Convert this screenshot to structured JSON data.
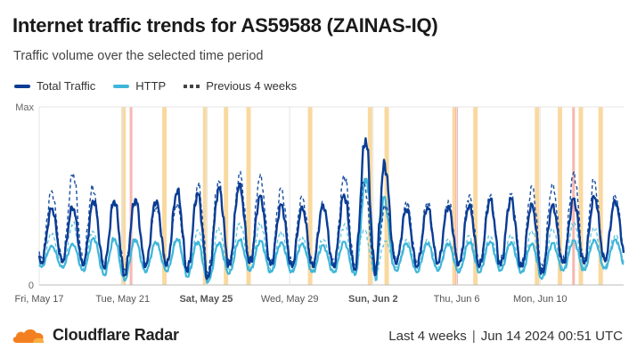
{
  "header": {
    "title": "Internet traffic trends for AS59588 (ZAINAS-IQ)",
    "subtitle": "Traffic volume over the selected time period"
  },
  "legend": {
    "total": "Total Traffic",
    "http": "HTTP",
    "previous": "Previous 4 weeks"
  },
  "colors": {
    "total": "#0a3c94",
    "http": "#3fb6d9",
    "previous_total": "#1b4fa0",
    "previous_http": "#5cc5e0",
    "highlight": "#f9d9a0",
    "highlight_red": "#f7b7b0",
    "grid": "#e4e4e4",
    "brand_orange": "#f38020"
  },
  "footer": {
    "brand": "Cloudflare Radar",
    "range": "Last 4 weeks",
    "separator": "|",
    "timestamp": "Jun 14 2024 00:51 UTC"
  },
  "chart_data": {
    "type": "line",
    "title": "Internet traffic trends for AS59588 (ZAINAS-IQ)",
    "subtitle": "Traffic volume over the selected time period",
    "y_tick_labels": [
      "Max",
      "0"
    ],
    "ylim": [
      0,
      1
    ],
    "x_tick_labels": [
      "Fri, May 17",
      "Tue, May 21",
      "Sat, May 25",
      "Wed, May 29",
      "Sun, Jun 2",
      "Thu, Jun 6",
      "Mon, Jun 10"
    ],
    "x_ticks_bold": [
      false,
      false,
      true,
      false,
      true,
      false,
      false
    ],
    "x_tick_days": [
      0,
      4,
      8,
      12,
      16,
      20,
      24
    ],
    "x_range_days": [
      0,
      28
    ],
    "grid": true,
    "legend_position": "top-left",
    "highlight_days": [
      4.04,
      6.0,
      7.95,
      8.95,
      10.03,
      12.98,
      15.85,
      16.65,
      19.9,
      20.9,
      23.85,
      24.95,
      25.95,
      26.9
    ],
    "highlight_days_red": [
      4.4,
      20.0,
      25.6
    ],
    "series": [
      {
        "name": "Total Traffic",
        "style": "solid",
        "daily": {
          "days": [
            0,
            1,
            2,
            3,
            4,
            5,
            6,
            7,
            8,
            9,
            10,
            11,
            12,
            13,
            14,
            15,
            16,
            17,
            18,
            19,
            20,
            21,
            22,
            23,
            24,
            25,
            26,
            27,
            28
          ],
          "peak": [
            0.42,
            0.44,
            0.44,
            0.5,
            0.46,
            0.5,
            0.46,
            0.58,
            0.47,
            0.6,
            0.55,
            0.47,
            0.44,
            0.44,
            0.46,
            0.54,
            1.0,
            0.44,
            0.42,
            0.45,
            0.44,
            0.46,
            0.5,
            0.48,
            0.44,
            0.46,
            0.5,
            0.5,
            0.46
          ],
          "trough": [
            0.12,
            0.13,
            0.11,
            0.1,
            0.05,
            0.1,
            0.11,
            0.08,
            0.03,
            0.1,
            0.12,
            0.11,
            0.1,
            0.1,
            0.1,
            0.09,
            0.05,
            0.12,
            0.1,
            0.12,
            0.11,
            0.1,
            0.11,
            0.1,
            0.06,
            0.12,
            0.12,
            0.13,
            0.15
          ]
        }
      },
      {
        "name": "HTTP",
        "style": "solid",
        "daily": {
          "days": [
            0,
            1,
            2,
            3,
            4,
            5,
            6,
            7,
            8,
            9,
            10,
            11,
            12,
            13,
            14,
            15,
            16,
            17,
            18,
            19,
            20,
            21,
            22,
            23,
            24,
            25,
            26,
            27,
            28
          ],
          "peak": [
            0.22,
            0.22,
            0.24,
            0.28,
            0.25,
            0.26,
            0.23,
            0.28,
            0.22,
            0.25,
            0.26,
            0.24,
            0.24,
            0.23,
            0.22,
            0.26,
            0.82,
            0.24,
            0.23,
            0.24,
            0.23,
            0.25,
            0.24,
            0.24,
            0.23,
            0.24,
            0.26,
            0.25,
            0.26
          ],
          "trough": [
            0.1,
            0.1,
            0.08,
            0.06,
            0.02,
            0.07,
            0.08,
            0.05,
            0.01,
            0.06,
            0.08,
            0.07,
            0.07,
            0.07,
            0.07,
            0.06,
            0.02,
            0.08,
            0.07,
            0.08,
            0.07,
            0.07,
            0.08,
            0.07,
            0.03,
            0.08,
            0.08,
            0.09,
            0.1
          ]
        }
      },
      {
        "name": "Previous 4 weeks",
        "style": "dashed",
        "daily": {
          "days": [
            0,
            1,
            2,
            3,
            4,
            5,
            6,
            7,
            8,
            9,
            10,
            11,
            12,
            13,
            14,
            15,
            16,
            17,
            18,
            19,
            20,
            21,
            22,
            23,
            24,
            25,
            26,
            27,
            28
          ],
          "peak": [
            0.54,
            0.52,
            0.7,
            0.44,
            0.48,
            0.46,
            0.42,
            0.48,
            0.62,
            0.56,
            0.68,
            0.58,
            0.52,
            0.48,
            0.46,
            0.72,
            0.46,
            0.44,
            0.48,
            0.46,
            0.48,
            0.52,
            0.5,
            0.52,
            0.58,
            0.56,
            0.68,
            0.52,
            0.5
          ],
          "trough": [
            0.14,
            0.14,
            0.12,
            0.12,
            0.08,
            0.12,
            0.13,
            0.1,
            0.06,
            0.12,
            0.13,
            0.12,
            0.12,
            0.12,
            0.12,
            0.11,
            0.08,
            0.14,
            0.12,
            0.13,
            0.12,
            0.12,
            0.13,
            0.12,
            0.08,
            0.13,
            0.13,
            0.14,
            0.16
          ]
        }
      }
    ]
  }
}
